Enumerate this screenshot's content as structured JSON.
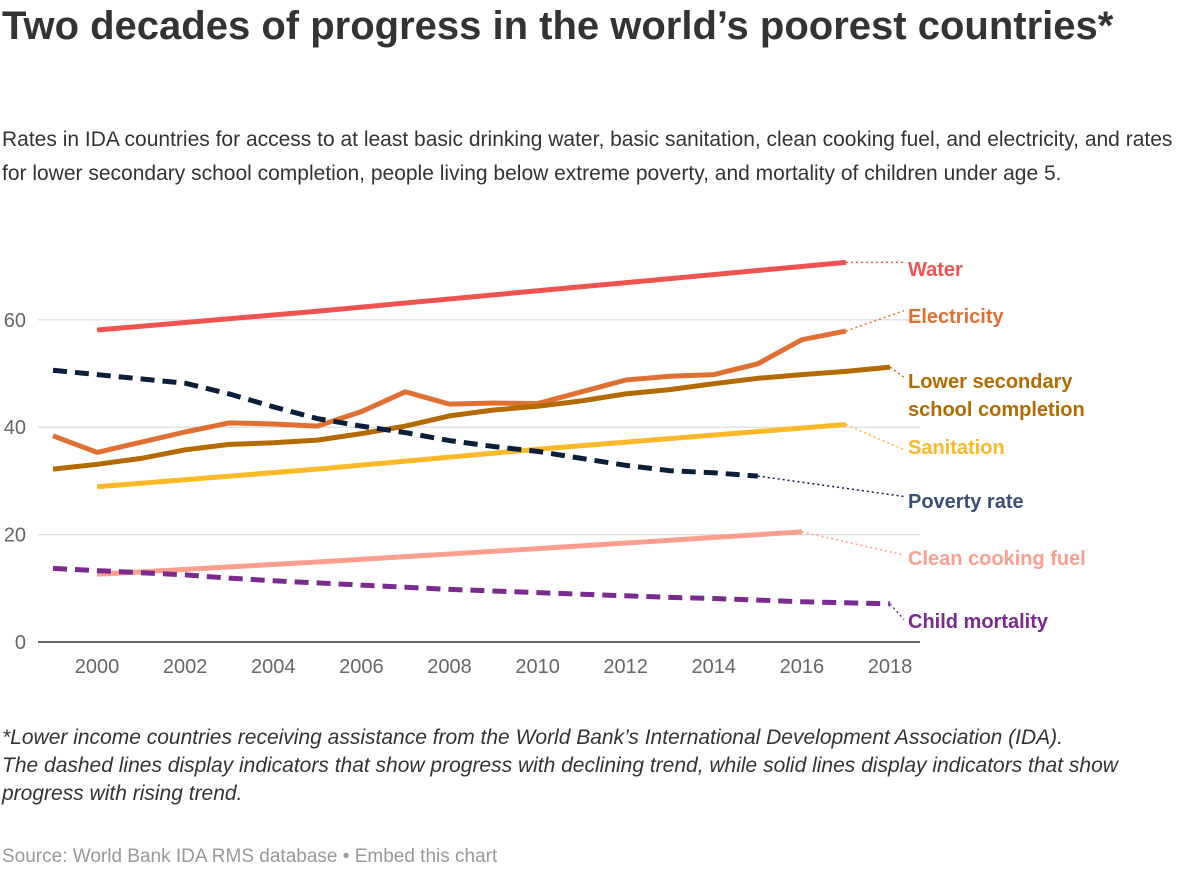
{
  "title": "Two decades of progress in the world’s poorest countries*",
  "subtitle": "Rates in IDA countries for access to at least basic drinking water, basic sanitation, clean cooking fuel, and electricity, and rates for lower secondary school completion, people living below extreme poverty, and mortality of children under age 5.",
  "notes": [
    "*Lower income countries receiving assistance from the World Bank’s International Development Association (IDA).",
    "The dashed lines display indicators that show progress with declining trend, while solid lines display indicators that show progress with rising trend."
  ],
  "source": {
    "text": "Source: World Bank IDA RMS database",
    "separator": "•",
    "embed_label": "Embed this chart"
  },
  "chart_data": {
    "type": "line",
    "title": "Two decades of progress in the world’s poorest countries*",
    "xlabel": "",
    "ylabel": "",
    "xlim": [
      1999,
      2018
    ],
    "ylim": [
      0,
      73
    ],
    "x_ticks": [
      2000,
      2002,
      2004,
      2006,
      2008,
      2010,
      2012,
      2014,
      2016,
      2018
    ],
    "y_ticks": [
      0,
      20,
      40,
      60
    ],
    "grid": true,
    "legend": "direct labels at right end of lines",
    "series": [
      {
        "name": "Water",
        "color": "#ef5350",
        "style": "solid",
        "x": [
          2000,
          2005,
          2010,
          2017
        ],
        "y": [
          58.1,
          61.6,
          65.4,
          70.7
        ],
        "connector_to": 70.7
      },
      {
        "name": "Electricity",
        "color": "#e07031",
        "style": "solid",
        "x": [
          1999,
          2000,
          2001,
          2002,
          2003,
          2004,
          2005,
          2006,
          2007,
          2008,
          2009,
          2010,
          2011,
          2012,
          2013,
          2014,
          2015,
          2016,
          2017
        ],
        "y": [
          38.4,
          35.3,
          37.2,
          39.1,
          40.8,
          40.6,
          40.2,
          42.9,
          46.6,
          44.3,
          44.5,
          44.4,
          46.6,
          48.8,
          49.5,
          49.8,
          51.8,
          56.3,
          57.9
        ],
        "connector_to": 61.7
      },
      {
        "name": "Lower secondary school completion",
        "label_lines": [
          "Lower secondary",
          "school completion"
        ],
        "color": "#b36b00",
        "style": "solid",
        "x": [
          1999,
          2000,
          2001,
          2002,
          2003,
          2004,
          2005,
          2006,
          2007,
          2008,
          2009,
          2010,
          2011,
          2012,
          2013,
          2014,
          2015,
          2016,
          2017,
          2018
        ],
        "y": [
          32.2,
          33.1,
          34.2,
          35.8,
          36.8,
          37.1,
          37.6,
          38.8,
          40.2,
          42.1,
          43.2,
          43.9,
          44.9,
          46.2,
          47.0,
          48.1,
          49.1,
          49.8,
          50.4,
          51.2
        ],
        "connector_to": 49.3
      },
      {
        "name": "Sanitation",
        "color": "#fbb829",
        "style": "solid",
        "x": [
          2000,
          2005,
          2010,
          2017
        ],
        "y": [
          28.9,
          32.2,
          35.9,
          40.5
        ],
        "connector_to": 35.8
      },
      {
        "name": "Poverty rate",
        "color": "#0b1f3a",
        "label_color": "#3a4f7a",
        "style": "dashed",
        "x": [
          1999,
          2000,
          2001,
          2002,
          2003,
          2004,
          2005,
          2006,
          2007,
          2008,
          2009,
          2010,
          2011,
          2012,
          2013,
          2014,
          2015
        ],
        "y": [
          50.6,
          49.8,
          49.0,
          48.2,
          46.2,
          43.8,
          41.6,
          40.2,
          39.0,
          37.5,
          36.4,
          35.5,
          34.2,
          32.9,
          31.9,
          31.5,
          30.9
        ],
        "connector_to": 27.1
      },
      {
        "name": "Clean cooking fuel",
        "color": "#fc9f8e",
        "style": "solid",
        "x": [
          2000,
          2005,
          2010,
          2016
        ],
        "y": [
          12.6,
          14.9,
          17.4,
          20.5
        ],
        "connector_to": 16.2
      },
      {
        "name": "Child mortality",
        "color": "#7b2a90",
        "style": "dashed",
        "x": [
          1999,
          2000,
          2001,
          2002,
          2003,
          2004,
          2005,
          2006,
          2007,
          2008,
          2009,
          2010,
          2011,
          2012,
          2013,
          2014,
          2015,
          2016,
          2017,
          2018
        ],
        "y": [
          13.7,
          13.3,
          12.9,
          12.5,
          11.9,
          11.4,
          11.0,
          10.6,
          10.2,
          9.8,
          9.5,
          9.2,
          8.9,
          8.6,
          8.3,
          8.1,
          7.8,
          7.5,
          7.3,
          7.1
        ],
        "connector_to": 4.2
      }
    ]
  }
}
